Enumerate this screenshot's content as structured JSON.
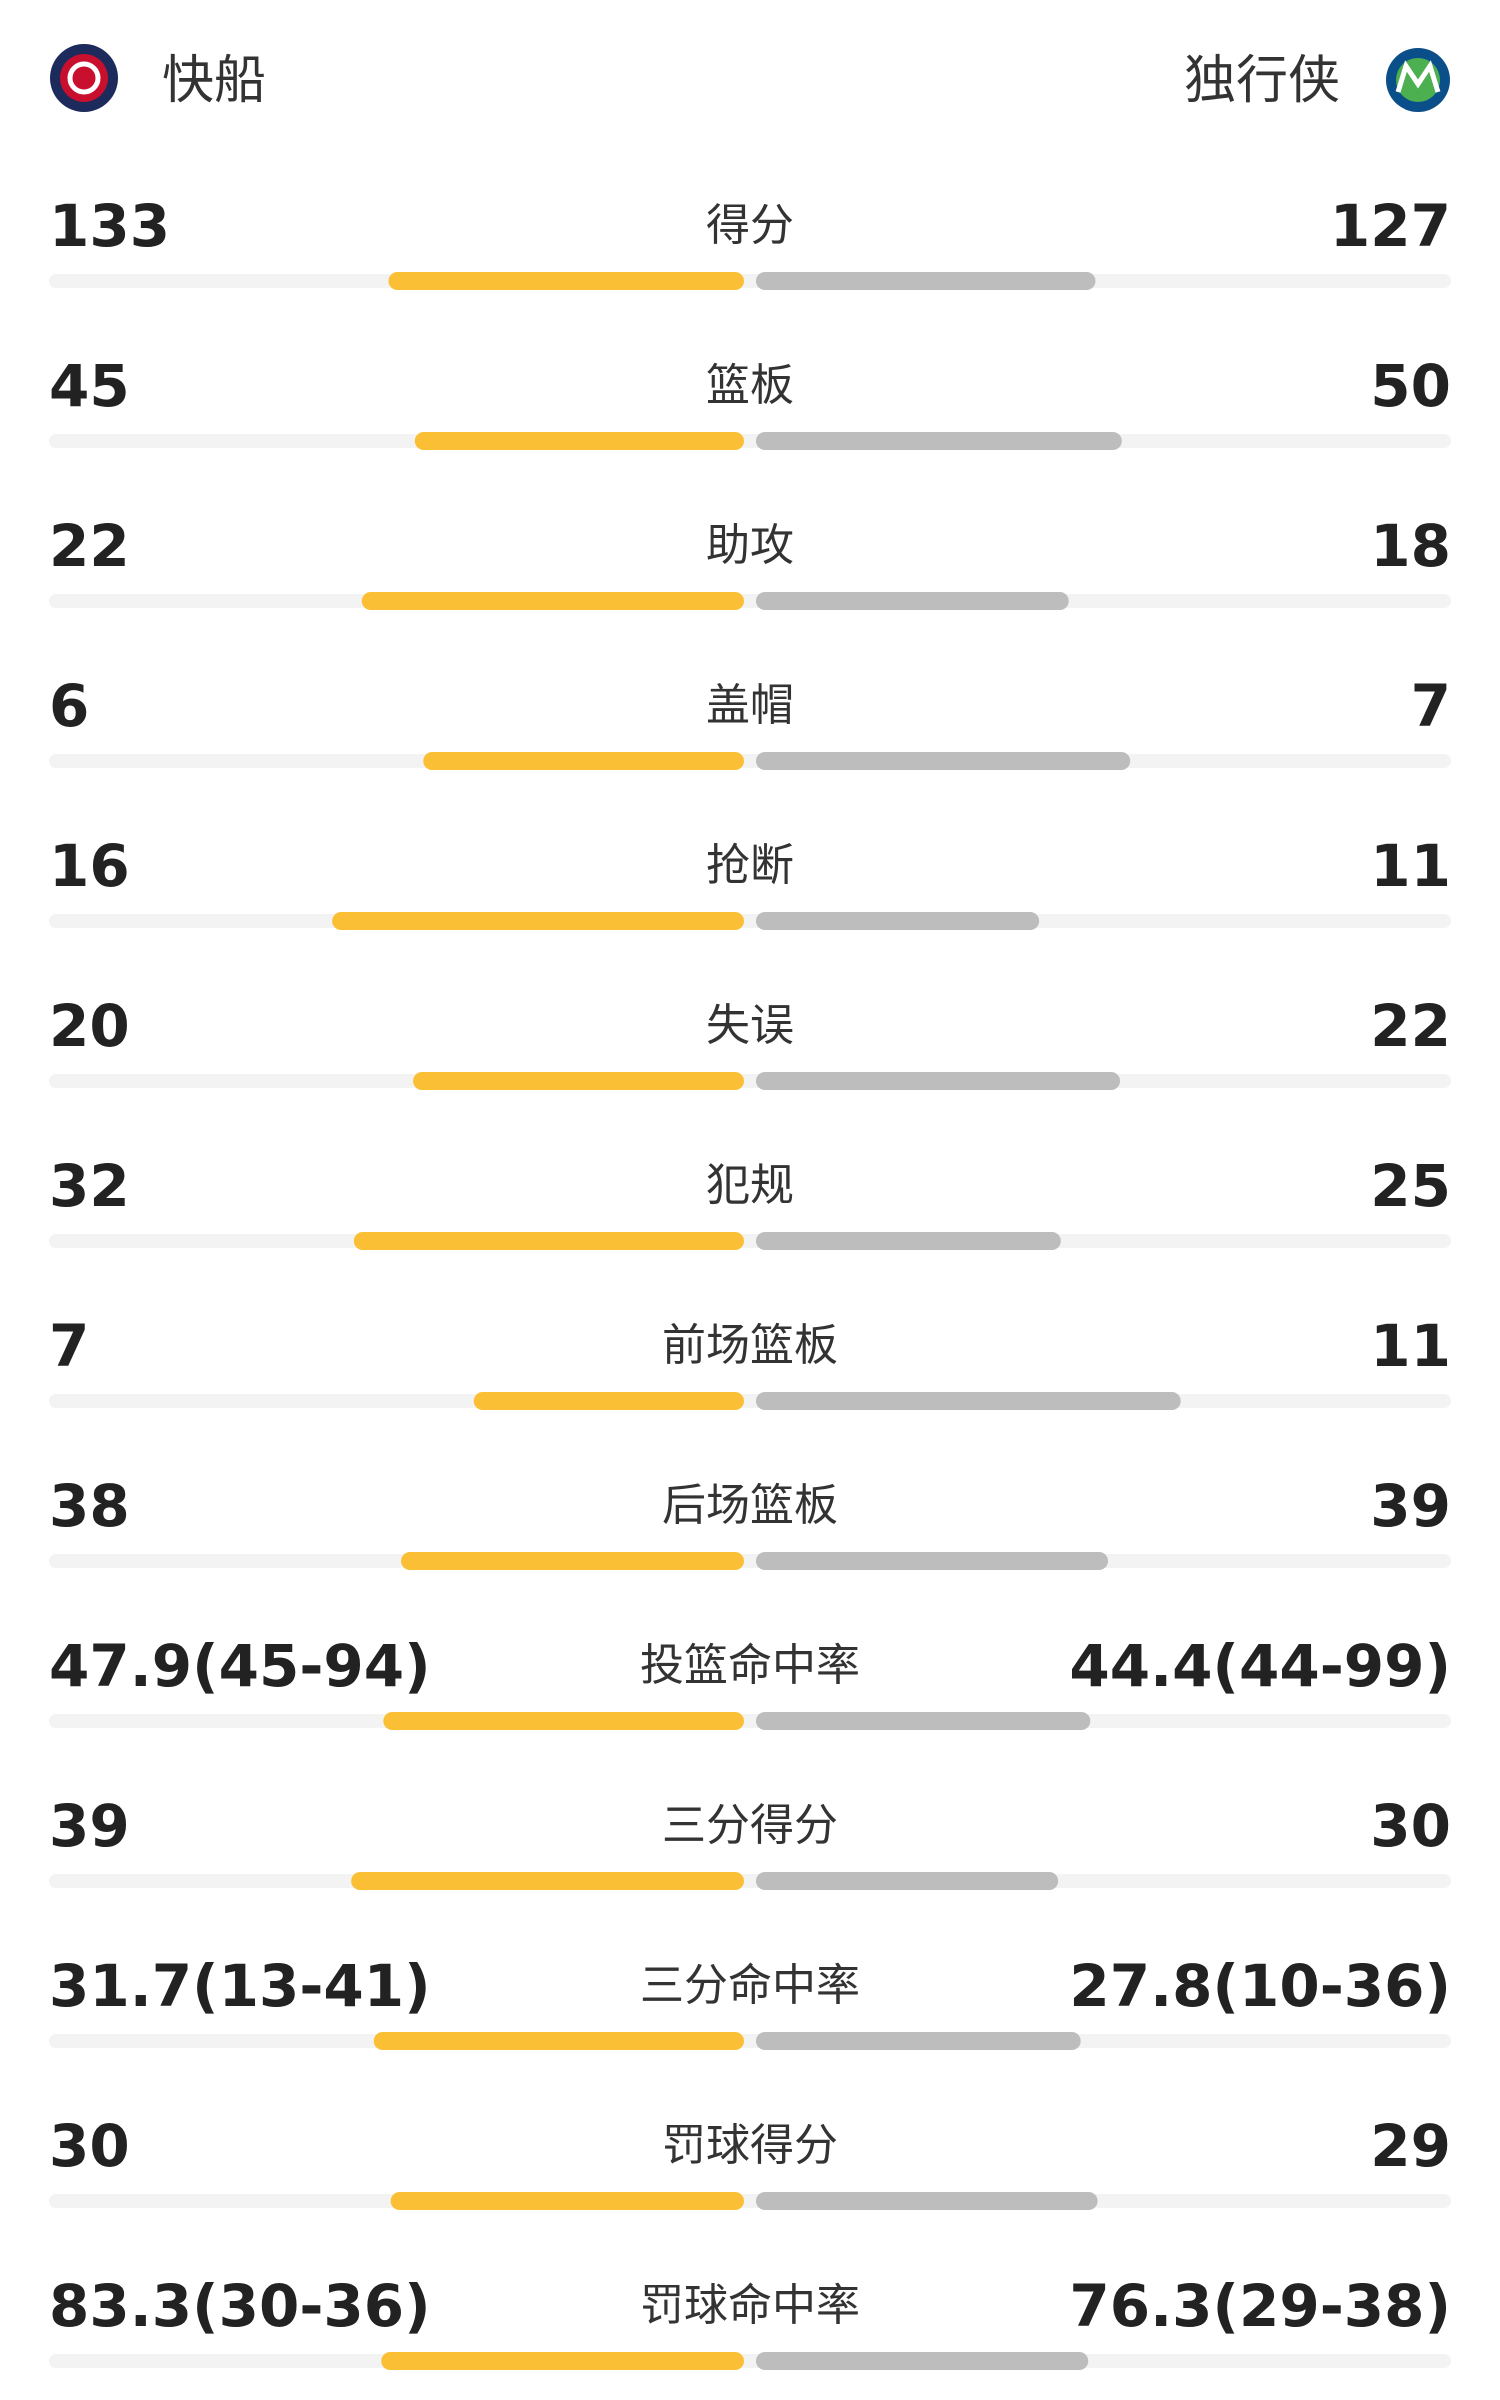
{
  "header": {
    "home_team": "快船",
    "away_team": "独行侠"
  },
  "stats": [
    {
      "label": "得分",
      "home": 133,
      "away": 127
    },
    {
      "label": "篮板",
      "home": 45,
      "away": 50
    },
    {
      "label": "助攻",
      "home": 22,
      "away": 18
    },
    {
      "label": "盖帽",
      "home": 6,
      "away": 7
    },
    {
      "label": "抢断",
      "home": 16,
      "away": 11
    },
    {
      "label": "失误",
      "home": 20,
      "away": 22
    },
    {
      "label": "犯规",
      "home": 32,
      "away": 25
    },
    {
      "label": "前场篮板",
      "home": 7,
      "away": 11
    },
    {
      "label": "后场篮板",
      "home": 38,
      "away": 39
    },
    {
      "label": "投篮命中率",
      "home": 47.9,
      "home_label": "47.9(45-94)",
      "away": 44.4,
      "away_label": "44.4(44-99)"
    },
    {
      "label": "三分得分",
      "home": 39,
      "away": 30
    },
    {
      "label": "三分命中率",
      "home": 31.7,
      "home_label": "31.7(13-41)",
      "away": 27.8,
      "away_label": "27.8(10-36)"
    },
    {
      "label": "罚球得分",
      "home": 30,
      "away": 29
    },
    {
      "label": "罚球命中率",
      "home": 83.3,
      "home_label": "83.3(30-36)",
      "away": 76.3,
      "away_label": "76.3(29-38)"
    }
  ]
}
